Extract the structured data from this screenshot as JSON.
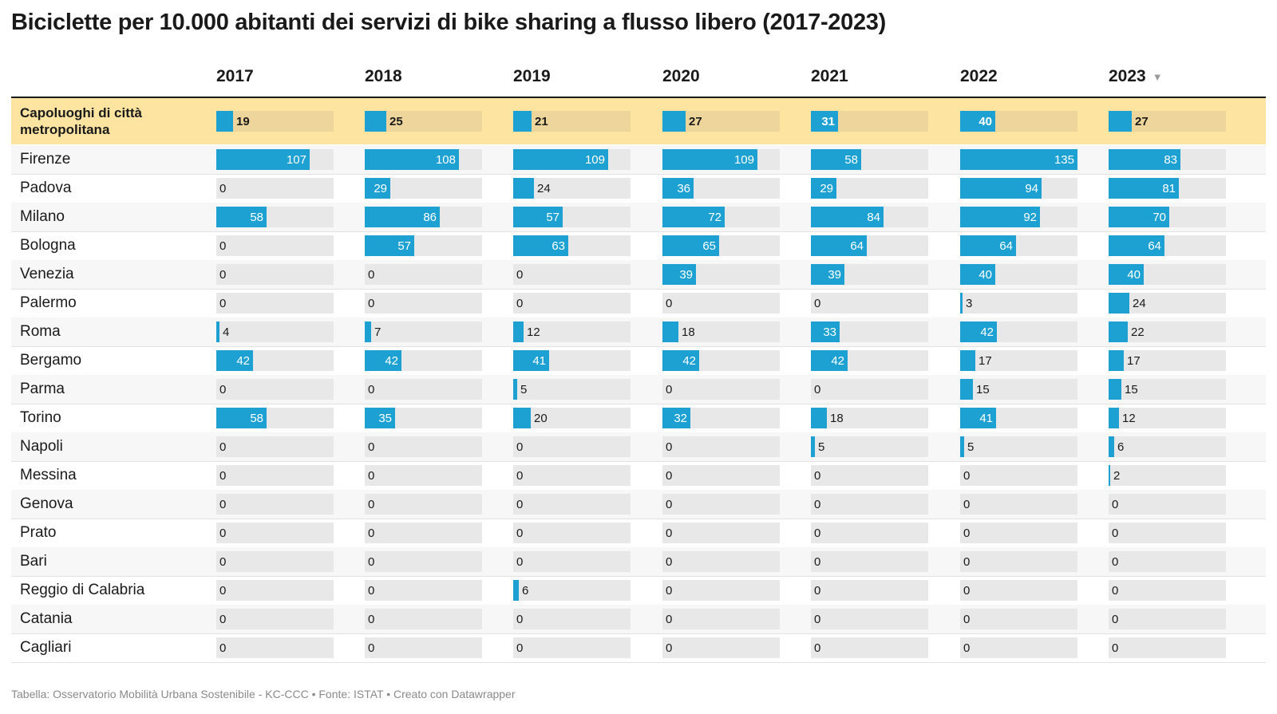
{
  "title": "Biciclette per 10.000 abitanti dei servizi di bike sharing a flusso libero (2017-2023)",
  "footer": "Tabella: Osservatorio Mobilità Urbana Sostenibile - KC-CCC • Fonte: ISTAT • Creato con Datawrapper",
  "sort_icon": "triangle-down-icon",
  "colors": {
    "bar": "#1da1d2",
    "bar_bg": "#e8e8e8",
    "highlight_bg": "#fde4a0",
    "highlight_bar_bg": "#eed59b"
  },
  "chart_data": {
    "type": "table",
    "title": "Biciclette per 10.000 abitanti dei servizi di bike sharing a flusso libero (2017-2023)",
    "columns": [
      "2017",
      "2018",
      "2019",
      "2020",
      "2021",
      "2022",
      "2023"
    ],
    "sorted_by": "2023",
    "bar_max": 135,
    "rows": [
      {
        "name": "Capoluoghi di città metropolitana",
        "highlight": true,
        "values": [
          19,
          25,
          21,
          27,
          31,
          40,
          27
        ]
      },
      {
        "name": "Firenze",
        "values": [
          107,
          108,
          109,
          109,
          58,
          135,
          83
        ]
      },
      {
        "name": "Padova",
        "values": [
          0,
          29,
          24,
          36,
          29,
          94,
          81
        ]
      },
      {
        "name": "Milano",
        "values": [
          58,
          86,
          57,
          72,
          84,
          92,
          70
        ]
      },
      {
        "name": "Bologna",
        "values": [
          0,
          57,
          63,
          65,
          64,
          64,
          64
        ]
      },
      {
        "name": "Venezia",
        "values": [
          0,
          0,
          0,
          39,
          39,
          40,
          40
        ]
      },
      {
        "name": "Palermo",
        "values": [
          0,
          0,
          0,
          0,
          0,
          3,
          24
        ]
      },
      {
        "name": "Roma",
        "values": [
          4,
          7,
          12,
          18,
          33,
          42,
          22
        ]
      },
      {
        "name": "Bergamo",
        "values": [
          42,
          42,
          41,
          42,
          42,
          17,
          17
        ]
      },
      {
        "name": "Parma",
        "values": [
          0,
          0,
          5,
          0,
          0,
          15,
          15
        ]
      },
      {
        "name": "Torino",
        "values": [
          58,
          35,
          20,
          32,
          18,
          41,
          12
        ]
      },
      {
        "name": "Napoli",
        "values": [
          0,
          0,
          0,
          0,
          5,
          5,
          6
        ]
      },
      {
        "name": "Messina",
        "values": [
          0,
          0,
          0,
          0,
          0,
          0,
          2
        ]
      },
      {
        "name": "Genova",
        "values": [
          0,
          0,
          0,
          0,
          0,
          0,
          0
        ]
      },
      {
        "name": "Prato",
        "values": [
          0,
          0,
          0,
          0,
          0,
          0,
          0
        ]
      },
      {
        "name": "Bari",
        "values": [
          0,
          0,
          0,
          0,
          0,
          0,
          0
        ]
      },
      {
        "name": "Reggio di Calabria",
        "values": [
          0,
          0,
          6,
          0,
          0,
          0,
          0
        ]
      },
      {
        "name": "Catania",
        "values": [
          0,
          0,
          0,
          0,
          0,
          0,
          0
        ]
      },
      {
        "name": "Cagliari",
        "values": [
          0,
          0,
          0,
          0,
          0,
          0,
          0
        ]
      }
    ]
  }
}
